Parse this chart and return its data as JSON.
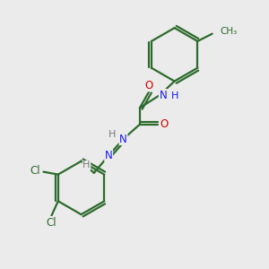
{
  "bg_color": "#ebebeb",
  "bond_color": "#2d6b2d",
  "bond_width": 1.6,
  "atom_colors": {
    "N": "#1a1aee",
    "O": "#cc0000",
    "Cl": "#2d6b2d",
    "H": "#7a7a7a",
    "C": "#2d6b2d"
  },
  "font_size": 8.5
}
